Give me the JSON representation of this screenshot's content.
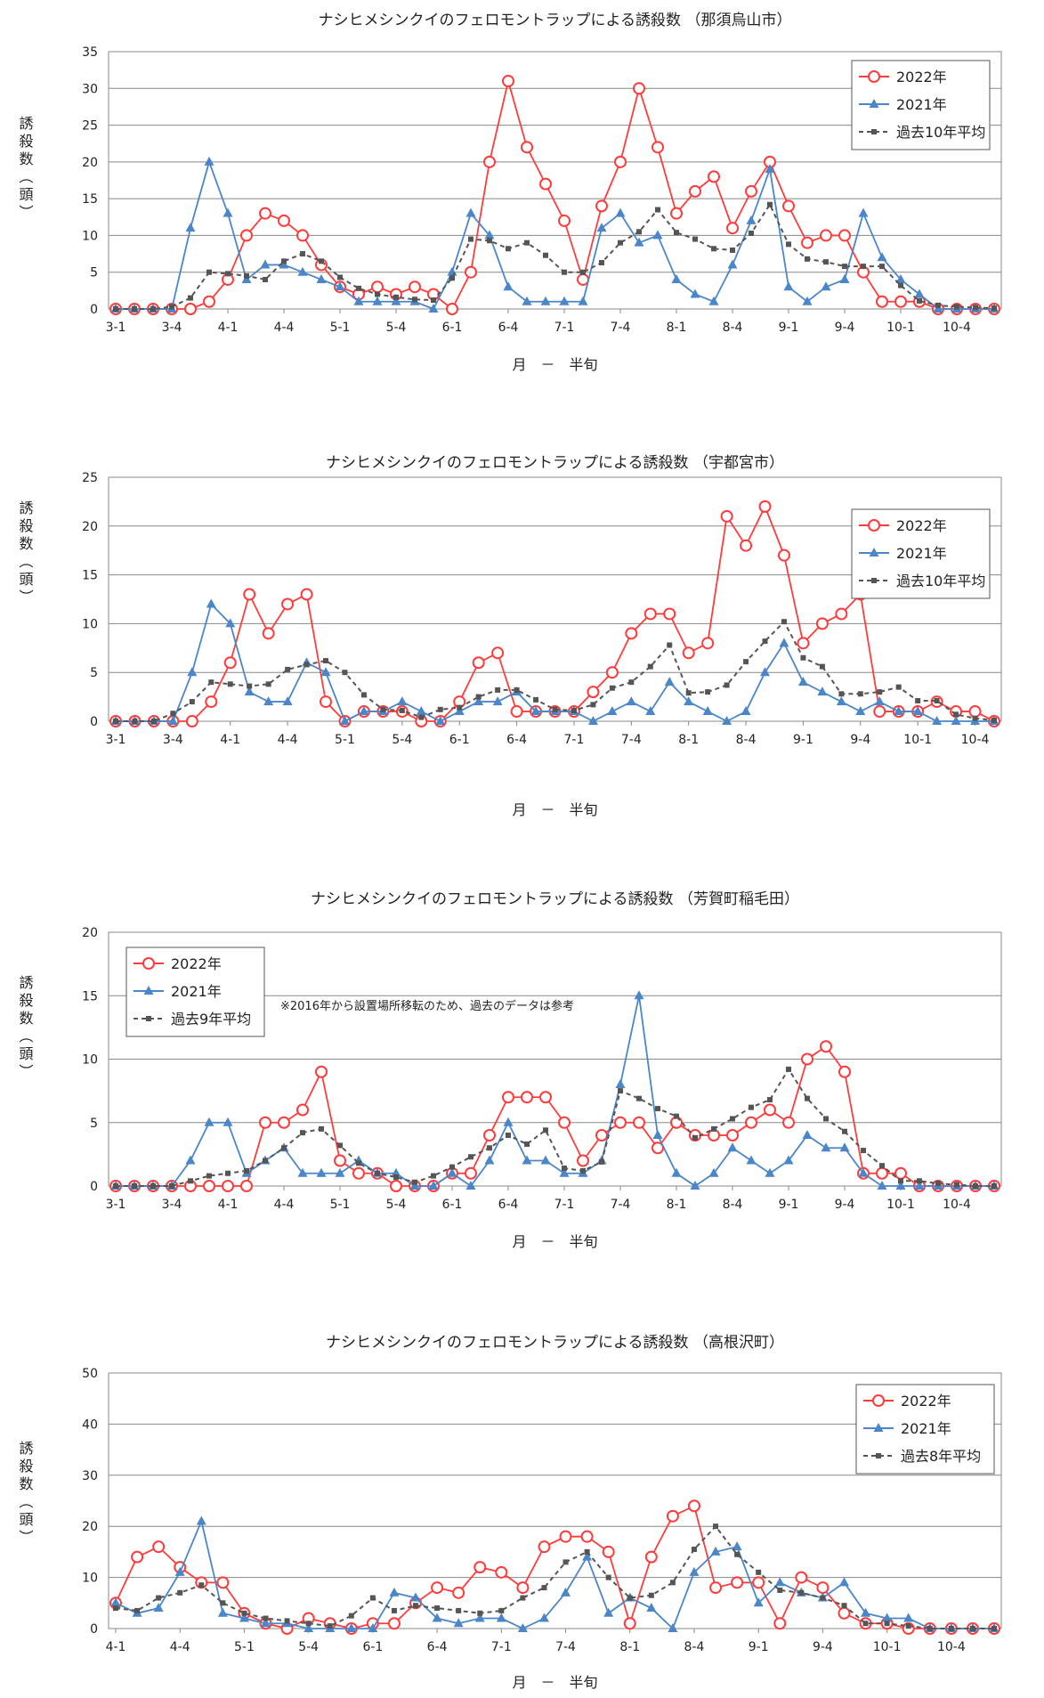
{
  "chart_data": [
    {
      "type": "line",
      "title": "ナシヒメシンクイのフェロモントラップによる誘殺数 （那須烏山市）",
      "xlabel": "月　－　半旬",
      "ylabel": "誘殺数（頭）",
      "ylim": [
        0,
        35
      ],
      "yticks": [
        0,
        5,
        10,
        15,
        20,
        25,
        30,
        35
      ],
      "x_tick_labels": [
        "3-1",
        "3-4",
        "4-1",
        "4-4",
        "5-1",
        "5-4",
        "6-1",
        "6-4",
        "7-1",
        "7-4",
        "8-1",
        "8-4",
        "9-1",
        "9-4",
        "10-1",
        "10-4"
      ],
      "grid": true,
      "legend_position": "top-right",
      "series": [
        {
          "name": "2022年",
          "color": "#ff3b3b",
          "marker": "circle",
          "values": [
            0,
            0,
            0,
            0,
            0,
            1,
            4,
            10,
            13,
            12,
            10,
            6,
            3,
            2,
            3,
            2,
            3,
            2,
            0,
            5,
            20,
            31,
            22,
            17,
            12,
            4,
            14,
            20,
            30,
            22,
            13,
            16,
            18,
            11,
            16,
            20,
            14,
            9,
            10,
            10,
            5,
            1,
            1,
            1,
            0,
            0,
            0,
            0
          ]
        },
        {
          "name": "2021年",
          "color": "#4a86c8",
          "marker": "triangle",
          "values": [
            0,
            0,
            0,
            0,
            11,
            20,
            13,
            4,
            6,
            6,
            5,
            4,
            3,
            1,
            1,
            1,
            1,
            0,
            5,
            13,
            10,
            3,
            1,
            1,
            1,
            1,
            11,
            13,
            9,
            10,
            4,
            2,
            1,
            6,
            12,
            19,
            3,
            1,
            3,
            4,
            13,
            7,
            4,
            2,
            0,
            0,
            0,
            0
          ]
        },
        {
          "name": "過去10年平均",
          "color": "#555555",
          "marker": "square",
          "dashed": true,
          "values": [
            0,
            0,
            0,
            0.3,
            1.5,
            5,
            4.8,
            4.5,
            4,
            6.5,
            7.5,
            6.5,
            4.3,
            2.8,
            2,
            1.6,
            1.3,
            1.2,
            4.2,
            9.5,
            9.3,
            8.2,
            9,
            7.3,
            5,
            5,
            6.3,
            9,
            10.5,
            13.5,
            10.4,
            9.5,
            8.2,
            8,
            10.3,
            14.2,
            8.8,
            6.8,
            6.4,
            5.8,
            5.8,
            5.8,
            3.2,
            1.1,
            0.5,
            0.3,
            0.2,
            0.1
          ]
        }
      ]
    },
    {
      "type": "line",
      "title": "ナシヒメシンクイのフェロモントラップによる誘殺数 （宇都宮市）",
      "xlabel": "月　－　半旬",
      "ylabel": "誘殺数（頭）",
      "ylim": [
        0,
        25
      ],
      "yticks": [
        0,
        5,
        10,
        15,
        20,
        25
      ],
      "x_tick_labels": [
        "3-1",
        "3-4",
        "4-1",
        "4-4",
        "5-1",
        "5-4",
        "6-1",
        "6-4",
        "7-1",
        "7-4",
        "8-1",
        "8-4",
        "9-1",
        "9-4",
        "10-1",
        "10-4"
      ],
      "grid": true,
      "legend_position": "top-right",
      "series": [
        {
          "name": "2022年",
          "color": "#ff3b3b",
          "marker": "circle",
          "values": [
            0,
            0,
            0,
            0,
            0,
            2,
            6,
            13,
            9,
            12,
            13,
            2,
            0,
            1,
            1,
            1,
            0,
            0,
            2,
            6,
            7,
            1,
            1,
            1,
            1,
            3,
            5,
            9,
            11,
            11,
            7,
            8,
            21,
            18,
            22,
            17,
            8,
            10,
            11,
            13,
            1,
            1,
            1,
            2,
            1,
            1,
            0
          ]
        },
        {
          "name": "2021年",
          "color": "#4a86c8",
          "marker": "triangle",
          "values": [
            0,
            0,
            0,
            0,
            5,
            12,
            10,
            3,
            2,
            2,
            6,
            5,
            0,
            1,
            1,
            2,
            1,
            0,
            1,
            2,
            2,
            3,
            1,
            1,
            1,
            0,
            1,
            2,
            1,
            4,
            2,
            1,
            0,
            1,
            5,
            8,
            4,
            3,
            2,
            1,
            2,
            1,
            1,
            0,
            0,
            0,
            0
          ]
        },
        {
          "name": "過去10年平均",
          "color": "#555555",
          "marker": "square",
          "dashed": true,
          "values": [
            0,
            0,
            0,
            0.8,
            2,
            4,
            3.8,
            3.6,
            3.8,
            5.3,
            5.8,
            6.2,
            5,
            2.7,
            1.2,
            1.1,
            0.4,
            1.2,
            1.4,
            2.5,
            3.2,
            3.2,
            2.2,
            1.2,
            1.1,
            1.7,
            3.4,
            4,
            5.6,
            7.8,
            2.9,
            3,
            3.7,
            6.1,
            8.2,
            10.2,
            6.5,
            5.6,
            2.8,
            2.8,
            3,
            3.5,
            2.1,
            2.1,
            0.7,
            0.3,
            0.1
          ]
        }
      ]
    },
    {
      "type": "line",
      "title": "ナシヒメシンクイのフェロモントラップによる誘殺数 （芳賀町稲毛田）",
      "xlabel": "月　－　半旬",
      "ylabel": "誘殺数（頭）",
      "ylim": [
        0,
        20
      ],
      "yticks": [
        0,
        5,
        10,
        15,
        20
      ],
      "x_tick_labels": [
        "3-1",
        "3-4",
        "4-1",
        "4-4",
        "5-1",
        "5-4",
        "6-1",
        "6-4",
        "7-1",
        "7-4",
        "8-1",
        "8-4",
        "9-1",
        "9-4",
        "10-1",
        "10-4"
      ],
      "grid": true,
      "legend_position": "top-left",
      "annotation": "※2016年から設置場所移転のため、過去のデータは参考",
      "series": [
        {
          "name": "2022年",
          "color": "#ff3b3b",
          "marker": "circle",
          "values": [
            0,
            0,
            0,
            0,
            0,
            0,
            0,
            0,
            5,
            5,
            6,
            9,
            2,
            1,
            1,
            0,
            0,
            0,
            1,
            1,
            4,
            7,
            7,
            7,
            5,
            2,
            4,
            5,
            5,
            3,
            5,
            4,
            4,
            4,
            5,
            6,
            5,
            10,
            11,
            9,
            1,
            1,
            1,
            0,
            0,
            0,
            0,
            0
          ]
        },
        {
          "name": "2021年",
          "color": "#4a86c8",
          "marker": "triangle",
          "values": [
            0,
            0,
            0,
            0,
            2,
            5,
            5,
            1,
            2,
            3,
            1,
            1,
            1,
            2,
            1,
            1,
            0,
            0,
            1,
            0,
            2,
            5,
            2,
            2,
            1,
            1,
            2,
            8,
            15,
            4,
            1,
            0,
            1,
            3,
            2,
            1,
            2,
            4,
            3,
            3,
            1,
            0,
            0,
            0,
            0,
            0,
            0,
            0
          ]
        },
        {
          "name": "過去9年平均",
          "color": "#555555",
          "marker": "square",
          "dashed": true,
          "values": [
            0,
            0,
            0,
            0,
            0.4,
            0.8,
            1,
            1.2,
            2,
            3,
            4.2,
            4.5,
            3.2,
            1.8,
            1,
            0.7,
            0.3,
            0.8,
            1.5,
            2.3,
            3,
            4,
            3.3,
            4.4,
            1.4,
            1.2,
            1.9,
            7.5,
            6.9,
            6.1,
            5.5,
            3.8,
            4.5,
            5.3,
            6.2,
            6.8,
            9.2,
            6.9,
            5.3,
            4.3,
            2.8,
            1.6,
            0.4,
            0.4,
            0.2,
            0.1,
            0,
            0
          ]
        }
      ]
    },
    {
      "type": "line",
      "title": "ナシヒメシンクイのフェロモントラップによる誘殺数 （高根沢町）",
      "xlabel": "月　－　半旬",
      "ylabel": "誘殺数（頭）",
      "ylim": [
        0,
        50
      ],
      "yticks": [
        0,
        10,
        20,
        30,
        40,
        50
      ],
      "x_tick_labels": [
        "4-1",
        "4-4",
        "5-1",
        "5-4",
        "6-1",
        "6-4",
        "7-1",
        "7-4",
        "8-1",
        "8-4",
        "9-1",
        "9-4",
        "10-1",
        "10-4"
      ],
      "grid": true,
      "legend_position": "top-right",
      "series": [
        {
          "name": "2022年",
          "color": "#ff3b3b",
          "marker": "circle",
          "values": [
            5,
            14,
            16,
            12,
            9,
            9,
            3,
            1,
            0,
            2,
            1,
            0,
            1,
            1,
            5,
            8,
            7,
            12,
            11,
            8,
            16,
            18,
            18,
            15,
            1,
            14,
            22,
            24,
            8,
            9,
            9,
            1,
            10,
            8,
            3,
            1,
            1,
            0,
            0,
            0,
            0,
            0
          ]
        },
        {
          "name": "2021年",
          "color": "#4a86c8",
          "marker": "triangle",
          "values": [
            5,
            3,
            4,
            11,
            21,
            3,
            2,
            1,
            1,
            0,
            0,
            0,
            0,
            7,
            6,
            2,
            1,
            2,
            2,
            0,
            2,
            7,
            14,
            3,
            6,
            4,
            0,
            11,
            15,
            16,
            5,
            9,
            7,
            6,
            9,
            3,
            2,
            2,
            0,
            0,
            0,
            0
          ]
        },
        {
          "name": "過去8年平均",
          "color": "#555555",
          "marker": "square",
          "dashed": true,
          "values": [
            4,
            3.5,
            6,
            7,
            8.5,
            5,
            3,
            2,
            1.5,
            1,
            0.5,
            2.5,
            6,
            3.5,
            4.5,
            4,
            3.5,
            3,
            3.5,
            6,
            8,
            13,
            15,
            10,
            6,
            6.5,
            9,
            15.5,
            20,
            14.5,
            11,
            7.5,
            7,
            6,
            4.5,
            1,
            1,
            0.5,
            0,
            0,
            0,
            0
          ]
        }
      ]
    }
  ]
}
